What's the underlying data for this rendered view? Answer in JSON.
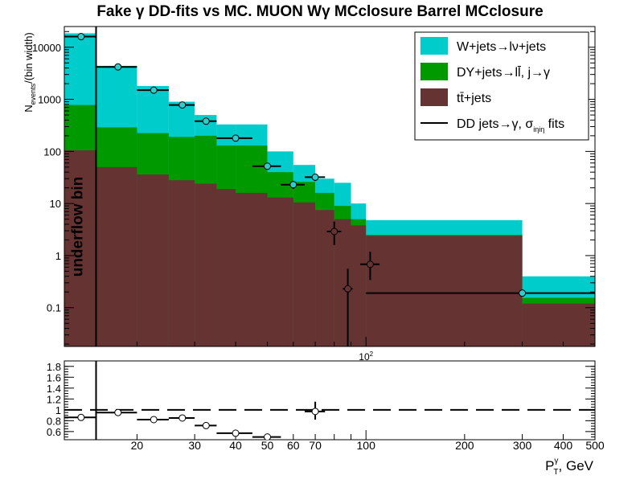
{
  "title": "Fake  γ DD-fits vs MC. MUON Wγ  MCclosure Barrel  MCclosure",
  "chart_data": [
    {
      "type": "bar",
      "panel": "main",
      "x_scale": "log",
      "y_scale": "log",
      "ylabel": "N_events/(bin width)",
      "ylabel_main": "N",
      "ylabel_sub": "events",
      "ylabel_tail": "/(bin width)",
      "ylim": [
        0.018,
        25000
      ],
      "xlim": [
        12,
        500
      ],
      "y_ticks": [
        {
          "value": 0.1,
          "label": "0.1"
        },
        {
          "value": 1,
          "label": "1"
        },
        {
          "value": 10,
          "label": "10"
        },
        {
          "value": 100,
          "label": "100"
        },
        {
          "value": 1000,
          "label": "1000"
        },
        {
          "value": 10000,
          "label": "10000"
        }
      ],
      "x_ticks": [
        {
          "value": 100,
          "label": "10²"
        }
      ],
      "bin_edges": [
        12,
        15,
        20,
        25,
        30,
        35,
        40,
        50,
        60,
        70,
        80,
        90,
        100,
        300,
        500
      ],
      "series": [
        {
          "name": "tt̄+jets",
          "color": "#663333",
          "values": [
            105,
            50,
            36,
            28,
            24,
            19,
            16,
            13,
            10.5,
            7.5,
            5,
            3.8,
            2.4,
            0.12
          ]
        },
        {
          "name": "DY+jets→ll̄, j→γ",
          "color": "#009900",
          "values": [
            780,
            290,
            225,
            190,
            200,
            130,
            130,
            40,
            26,
            16,
            9,
            5,
            2.5,
            0.155
          ]
        },
        {
          "name": "W+jets→lν+jets",
          "color": "#00cccc",
          "values": [
            18500,
            4400,
            1800,
            900,
            500,
            330,
            330,
            100,
            55,
            30,
            25,
            10,
            4.8,
            0.4
          ]
        }
      ],
      "overlay": {
        "name": "DD jets→γ, σ_iηiη fits",
        "legend_main": "DD jets→γ, σ",
        "legend_sub": "iηiη",
        "legend_tail": " fits",
        "color": "#000000",
        "points": [
          {
            "x": 13.5,
            "y": 16000,
            "xerr": [
              1.5,
              1.5
            ],
            "yerr": [
              500,
              500
            ],
            "fill": "#33cccc"
          },
          {
            "x": 17.5,
            "y": 4200,
            "xerr": [
              2.5,
              2.5
            ],
            "yerr": [
              200,
              200
            ],
            "fill": "#33cccc"
          },
          {
            "x": 22.5,
            "y": 1500,
            "xerr": [
              2.5,
              2.5
            ],
            "yerr": [
              90,
              90
            ],
            "fill": "#33cccc"
          },
          {
            "x": 27.5,
            "y": 780,
            "xerr": [
              2.5,
              2.5
            ],
            "yerr": [
              60,
              60
            ],
            "fill": "#33cccc"
          },
          {
            "x": 32.5,
            "y": 380,
            "xerr": [
              2.5,
              2.5
            ],
            "yerr": [
              35,
              35
            ],
            "fill": "#33cccc"
          },
          {
            "x": 40,
            "y": 180,
            "xerr": [
              5,
              5
            ],
            "yerr": [
              20,
              20
            ],
            "fill": "#33cccc"
          },
          {
            "x": 50,
            "y": 52,
            "xerr": [
              5,
              5
            ],
            "yerr": [
              7,
              7
            ],
            "fill": "#33cccc"
          },
          {
            "x": 60,
            "y": 23,
            "xerr": [
              5,
              5
            ],
            "yerr": [
              4,
              4
            ],
            "fill": "#33cccc"
          },
          {
            "x": 70,
            "y": 32,
            "xerr": [
              5,
              5
            ],
            "yerr": [
              5,
              5
            ],
            "fill": "#33cccc"
          },
          {
            "x": 80,
            "y": 2.9,
            "xerr": [
              4,
              4
            ],
            "yerr": [
              1.3,
              1.6
            ],
            "fill": "#663333"
          },
          {
            "x": 88,
            "y": 0.23,
            "xerr": [
              3,
              3
            ],
            "yerr": [
              0.212,
              0.33
            ],
            "fill": "#663333"
          },
          {
            "x": 103,
            "y": 0.68,
            "xerr": [
              7,
              7
            ],
            "yerr": [
              0.34,
              0.5
            ],
            "fill": "#663333"
          },
          {
            "x": 300,
            "y": 0.19,
            "xerr": [
              200,
              200
            ],
            "yerr": [
              0.01,
              0.01
            ],
            "fill": "#33cccc"
          }
        ]
      },
      "annotation": "underflow bin",
      "divider_x": 15,
      "legend_position": "top-right"
    },
    {
      "type": "scatter",
      "panel": "ratio",
      "x_scale": "log",
      "ylim": [
        0.45,
        1.9
      ],
      "xlim": [
        12,
        500
      ],
      "xlabel": "P_T^γ, GeV",
      "xlabel_main": "P",
      "xlabel_sub": "T",
      "xlabel_sup": "γ",
      "xlabel_tail": ", GeV",
      "y_ticks": [
        {
          "value": 0.6,
          "label": "0.6"
        },
        {
          "value": 0.8,
          "label": "0.8"
        },
        {
          "value": 1.0,
          "label": "1"
        },
        {
          "value": 1.2,
          "label": "1.2"
        },
        {
          "value": 1.4,
          "label": "1.4"
        },
        {
          "value": 1.6,
          "label": "1.6"
        },
        {
          "value": 1.8,
          "label": "1.8"
        }
      ],
      "x_ticks": [
        {
          "value": 20,
          "label": "20"
        },
        {
          "value": 30,
          "label": "30"
        },
        {
          "value": 40,
          "label": "40"
        },
        {
          "value": 50,
          "label": "50"
        },
        {
          "value": 60,
          "label": "60"
        },
        {
          "value": 70,
          "label": "70"
        },
        {
          "value": 100,
          "label": "100"
        },
        {
          "value": 200,
          "label": "200"
        },
        {
          "value": 300,
          "label": "300"
        },
        {
          "value": 400,
          "label": "400"
        },
        {
          "value": 500,
          "label": "500"
        }
      ],
      "reference_line": 1.0,
      "points": [
        {
          "x": 13.5,
          "y": 0.86,
          "xerr": [
            1.5,
            1.5
          ],
          "yerr": [
            0,
            0
          ]
        },
        {
          "x": 17.5,
          "y": 0.95,
          "xerr": [
            2.5,
            2.5
          ],
          "yerr": [
            0,
            0
          ]
        },
        {
          "x": 22.5,
          "y": 0.82,
          "xerr": [
            2.5,
            2.5
          ],
          "yerr": [
            0,
            0
          ]
        },
        {
          "x": 27.5,
          "y": 0.85,
          "xerr": [
            2.5,
            2.5
          ],
          "yerr": [
            0,
            0
          ]
        },
        {
          "x": 32.5,
          "y": 0.71,
          "xerr": [
            2.5,
            2.5
          ],
          "yerr": [
            0,
            0
          ]
        },
        {
          "x": 40,
          "y": 0.57,
          "xerr": [
            5,
            5
          ],
          "yerr": [
            0,
            0
          ]
        },
        {
          "x": 50,
          "y": 0.5,
          "xerr": [
            5,
            5
          ],
          "yerr": [
            0,
            0
          ]
        },
        {
          "x": 70,
          "y": 0.97,
          "xerr": [
            5,
            5
          ],
          "yerr": [
            0.15,
            0.18
          ]
        }
      ],
      "divider_x": 15
    }
  ]
}
